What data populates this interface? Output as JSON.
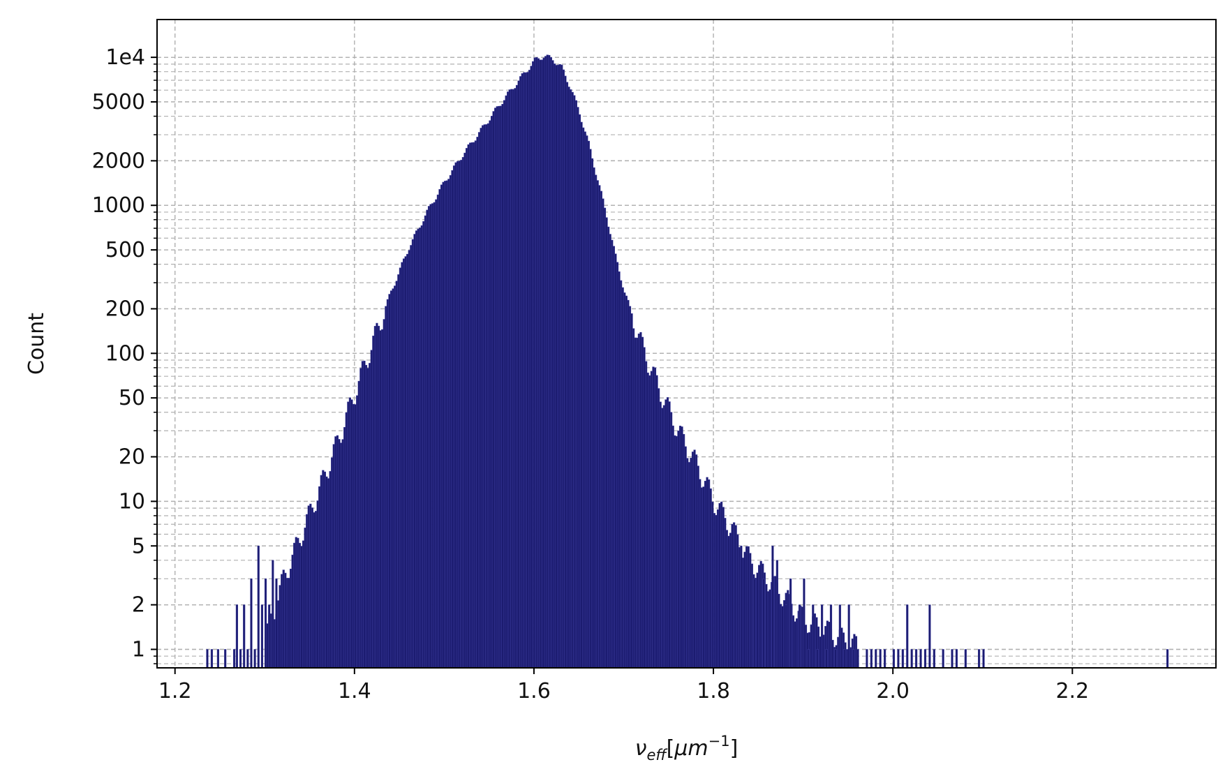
{
  "chart_data": {
    "type": "bar",
    "title": "",
    "xlabel_symbol": "ν",
    "xlabel_subscript": "eff",
    "xlabel_bracket_open": "[",
    "xlabel_unit": "μm",
    "xlabel_unit_exponent": "−1",
    "xlabel_bracket_close": "]",
    "ylabel": "Count",
    "yscale": "log",
    "xlim": [
      1.18,
      2.36
    ],
    "ylim": [
      0.75,
      18000
    ],
    "grid": true,
    "grid_style": "dashed",
    "x_ticks": [
      1.2,
      1.4,
      1.6,
      1.8,
      2.0,
      2.2
    ],
    "x_tick_labels": [
      "1.2",
      "1.4",
      "1.6",
      "1.8",
      "2.0",
      "2.2"
    ],
    "y_ticks": [
      1,
      2,
      5,
      10,
      20,
      50,
      100,
      200,
      500,
      1000,
      2000,
      5000,
      10000
    ],
    "y_tick_labels": [
      "1",
      "2",
      "5",
      "10",
      "20",
      "50",
      "100",
      "200",
      "500",
      "1000",
      "2000",
      "5000",
      "1e4"
    ],
    "bar_color": "#1a1a6e",
    "bar_edge_color": "#3b3b9a",
    "outline": [
      [
        1.3,
        1.2
      ],
      [
        1.32,
        3
      ],
      [
        1.34,
        6
      ],
      [
        1.36,
        12
      ],
      [
        1.38,
        25
      ],
      [
        1.4,
        55
      ],
      [
        1.42,
        120
      ],
      [
        1.44,
        260
      ],
      [
        1.46,
        520
      ],
      [
        1.48,
        900
      ],
      [
        1.5,
        1450
      ],
      [
        1.52,
        2200
      ],
      [
        1.54,
        3200
      ],
      [
        1.56,
        4700
      ],
      [
        1.58,
        6700
      ],
      [
        1.6,
        9500
      ],
      [
        1.61,
        10200
      ],
      [
        1.62,
        9700
      ],
      [
        1.63,
        8500
      ],
      [
        1.64,
        6200
      ],
      [
        1.65,
        4200
      ],
      [
        1.66,
        2600
      ],
      [
        1.67,
        1500
      ],
      [
        1.68,
        850
      ],
      [
        1.69,
        450
      ],
      [
        1.7,
        260
      ],
      [
        1.72,
        110
      ],
      [
        1.74,
        55
      ],
      [
        1.76,
        30
      ],
      [
        1.78,
        18
      ],
      [
        1.8,
        10
      ],
      [
        1.82,
        6.5
      ],
      [
        1.84,
        4
      ],
      [
        1.86,
        3
      ],
      [
        1.88,
        2.2
      ],
      [
        1.9,
        1.6
      ],
      [
        1.92,
        1.4
      ],
      [
        1.94,
        1.2
      ],
      [
        1.96,
        1.05
      ]
    ],
    "isolated_bars": [
      [
        1.235,
        1
      ],
      [
        1.24,
        1
      ],
      [
        1.247,
        1
      ],
      [
        1.255,
        1
      ],
      [
        1.265,
        1
      ],
      [
        1.268,
        2
      ],
      [
        1.272,
        1
      ],
      [
        1.276,
        2
      ],
      [
        1.28,
        1
      ],
      [
        1.284,
        3
      ],
      [
        1.288,
        1
      ],
      [
        1.292,
        5
      ],
      [
        1.296,
        2
      ],
      [
        1.3,
        3
      ],
      [
        1.304,
        2
      ],
      [
        1.308,
        4
      ],
      [
        1.312,
        3
      ],
      [
        1.82,
        7
      ],
      [
        1.83,
        5
      ],
      [
        1.845,
        3
      ],
      [
        1.855,
        3
      ],
      [
        1.865,
        5
      ],
      [
        1.87,
        4
      ],
      [
        1.88,
        2
      ],
      [
        1.885,
        3
      ],
      [
        1.895,
        2
      ],
      [
        1.9,
        3
      ],
      [
        1.905,
        1
      ],
      [
        1.91,
        2
      ],
      [
        1.915,
        1
      ],
      [
        1.92,
        2
      ],
      [
        1.925,
        1
      ],
      [
        1.93,
        2
      ],
      [
        1.935,
        1
      ],
      [
        1.94,
        2
      ],
      [
        1.945,
        1
      ],
      [
        1.95,
        2
      ],
      [
        1.955,
        1
      ],
      [
        1.96,
        1
      ],
      [
        1.97,
        1
      ],
      [
        1.975,
        1
      ],
      [
        1.98,
        1
      ],
      [
        1.985,
        1
      ],
      [
        1.99,
        1
      ],
      [
        2.0,
        1
      ],
      [
        2.005,
        1
      ],
      [
        2.01,
        1
      ],
      [
        2.015,
        2
      ],
      [
        2.02,
        1
      ],
      [
        2.025,
        1
      ],
      [
        2.03,
        1
      ],
      [
        2.035,
        1
      ],
      [
        2.04,
        2
      ],
      [
        2.045,
        1
      ],
      [
        2.055,
        1
      ],
      [
        2.065,
        1
      ],
      [
        2.07,
        1
      ],
      [
        2.08,
        1
      ],
      [
        2.095,
        1
      ],
      [
        2.1,
        1
      ],
      [
        2.305,
        1
      ]
    ]
  }
}
